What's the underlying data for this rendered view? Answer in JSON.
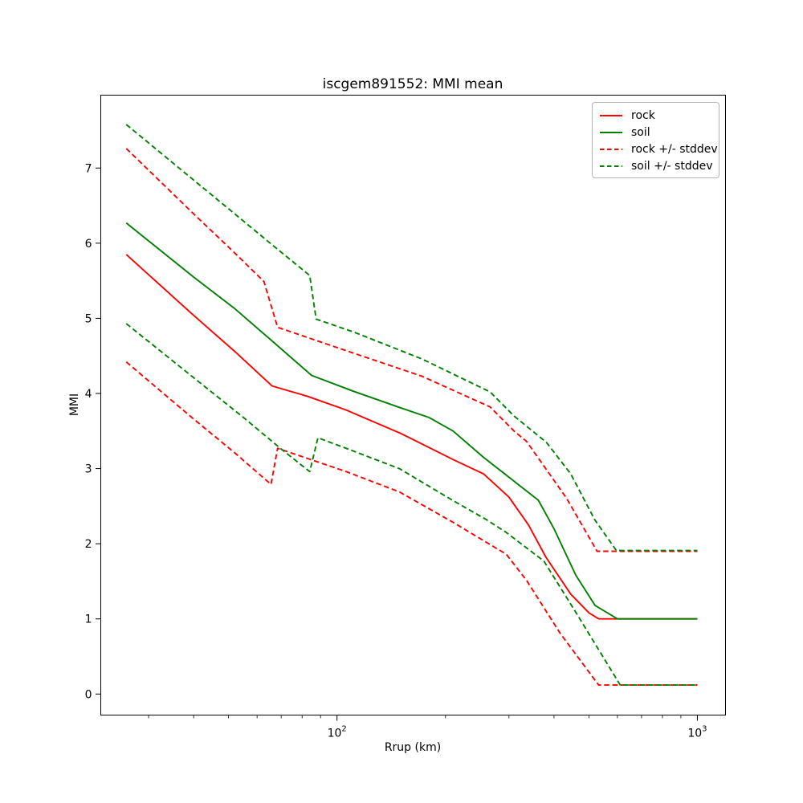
{
  "chart_data": {
    "type": "line",
    "title": "iscgem891552: MMI mean",
    "xlabel": "Rrup (km)",
    "ylabel": "MMI",
    "x_scale": "log",
    "xlim": [
      22.1,
      1197
    ],
    "ylim": [
      -0.28,
      7.97
    ],
    "grid": false,
    "legend_position": "upper right",
    "y_ticks": [
      0,
      1,
      2,
      3,
      4,
      5,
      6,
      7
    ],
    "x_major_ticks": [
      {
        "value": 100,
        "base": "10",
        "exp": "2"
      },
      {
        "value": 1000,
        "base": "10",
        "exp": "3"
      }
    ],
    "x_minor_ticks": [
      30,
      40,
      50,
      60,
      70,
      80,
      90,
      200,
      300,
      400,
      500,
      600,
      700,
      800,
      900
    ],
    "colors": {
      "rock": "#ff0000",
      "soil": "#008000"
    },
    "legend": [
      {
        "label": "rock",
        "color": "#ff0000",
        "dashed": false
      },
      {
        "label": "soil",
        "color": "#008000",
        "dashed": false
      },
      {
        "label": "rock +/- stddev",
        "color": "#ff0000",
        "dashed": true
      },
      {
        "label": "soil +/- stddev",
        "color": "#008000",
        "dashed": true
      }
    ],
    "lines": [
      {
        "name": "rock-mean",
        "color": "#ff0000",
        "dashed": false,
        "points": [
          [
            26,
            5.85
          ],
          [
            40,
            5.04
          ],
          [
            52,
            4.56
          ],
          [
            66,
            4.1
          ],
          [
            83,
            3.96
          ],
          [
            106,
            3.78
          ],
          [
            150,
            3.47
          ],
          [
            210,
            3.12
          ],
          [
            255,
            2.93
          ],
          [
            300,
            2.62
          ],
          [
            340,
            2.25
          ],
          [
            380,
            1.82
          ],
          [
            445,
            1.33
          ],
          [
            500,
            1.08
          ],
          [
            532,
            1.0
          ],
          [
            1000,
            1.0
          ]
        ]
      },
      {
        "name": "soil-mean",
        "color": "#008000",
        "dashed": false,
        "points": [
          [
            26,
            6.27
          ],
          [
            40,
            5.55
          ],
          [
            52,
            5.13
          ],
          [
            66,
            4.7
          ],
          [
            85,
            4.24
          ],
          [
            111,
            4.03
          ],
          [
            150,
            3.81
          ],
          [
            180,
            3.68
          ],
          [
            210,
            3.5
          ],
          [
            255,
            3.15
          ],
          [
            318,
            2.79
          ],
          [
            362,
            2.58
          ],
          [
            400,
            2.2
          ],
          [
            460,
            1.58
          ],
          [
            520,
            1.18
          ],
          [
            600,
            1.0
          ],
          [
            1000,
            1.0
          ]
        ]
      },
      {
        "name": "rock-plus-stddev",
        "color": "#ff0000",
        "dashed": true,
        "points": [
          [
            26,
            7.26
          ],
          [
            40,
            6.39
          ],
          [
            52,
            5.87
          ],
          [
            62.7,
            5.49
          ],
          [
            68.4,
            4.88
          ],
          [
            106,
            4.57
          ],
          [
            172,
            4.23
          ],
          [
            266,
            3.82
          ],
          [
            310,
            3.5
          ],
          [
            336,
            3.36
          ],
          [
            433,
            2.61
          ],
          [
            527,
            1.9
          ],
          [
            1000,
            1.9
          ]
        ]
      },
      {
        "name": "rock-minus-stddev",
        "color": "#ff0000",
        "dashed": true,
        "points": [
          [
            26,
            4.42
          ],
          [
            40,
            3.66
          ],
          [
            52,
            3.21
          ],
          [
            65.6,
            2.79
          ],
          [
            68.4,
            3.27
          ],
          [
            106,
            2.96
          ],
          [
            149,
            2.69
          ],
          [
            209,
            2.29
          ],
          [
            295,
            1.86
          ],
          [
            336,
            1.51
          ],
          [
            416,
            0.81
          ],
          [
            532,
            0.12
          ],
          [
            1000,
            0.12
          ]
        ]
      },
      {
        "name": "soil-plus-stddev",
        "color": "#008000",
        "dashed": true,
        "points": [
          [
            26,
            7.58
          ],
          [
            40,
            6.84
          ],
          [
            52,
            6.39
          ],
          [
            66,
            5.98
          ],
          [
            84,
            5.57
          ],
          [
            87.5,
            4.99
          ],
          [
            111,
            4.82
          ],
          [
            172,
            4.46
          ],
          [
            266,
            4.02
          ],
          [
            310,
            3.7
          ],
          [
            381,
            3.35
          ],
          [
            445,
            2.93
          ],
          [
            519,
            2.32
          ],
          [
            596,
            1.91
          ],
          [
            1000,
            1.91
          ]
        ]
      },
      {
        "name": "soil-minus-stddev",
        "color": "#008000",
        "dashed": true,
        "points": [
          [
            26,
            4.93
          ],
          [
            40,
            4.21
          ],
          [
            55,
            3.68
          ],
          [
            70,
            3.26
          ],
          [
            84,
            2.96
          ],
          [
            88.5,
            3.41
          ],
          [
            106,
            3.27
          ],
          [
            149,
            3.0
          ],
          [
            209,
            2.58
          ],
          [
            260,
            2.32
          ],
          [
            295,
            2.15
          ],
          [
            375,
            1.77
          ],
          [
            461,
            1.08
          ],
          [
            611,
            0.12
          ],
          [
            1000,
            0.12
          ]
        ]
      }
    ]
  }
}
